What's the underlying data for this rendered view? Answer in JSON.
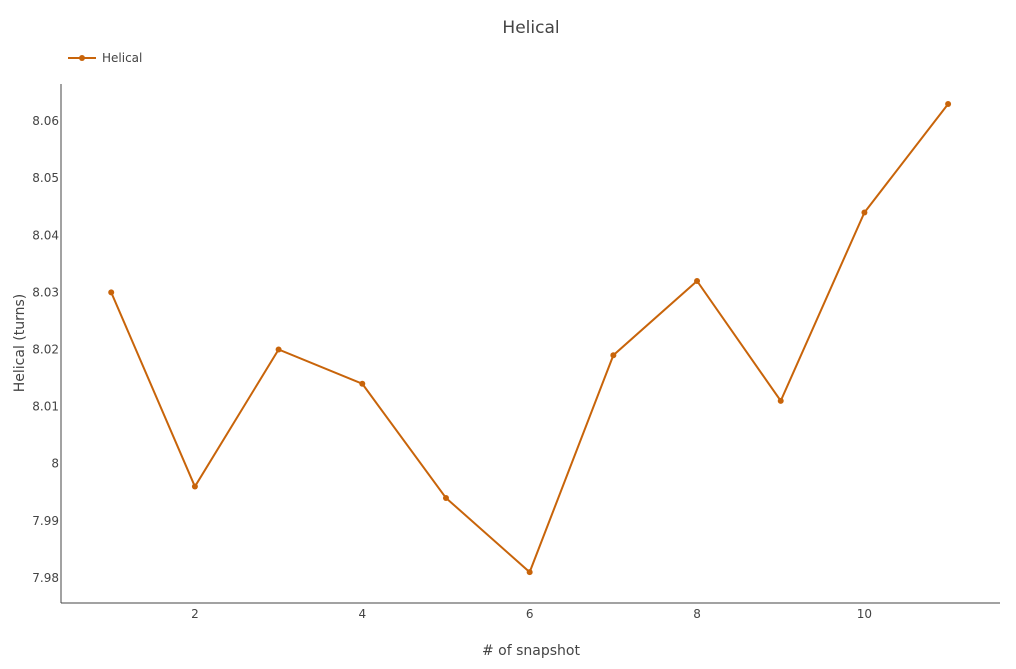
{
  "chart_data": {
    "type": "line",
    "title": "Helical",
    "xlabel": "# of snapshot",
    "ylabel": "Helical (turns)",
    "legend_position": "top-left",
    "grid": false,
    "xlim": [
      0.4,
      11.62
    ],
    "ylim": [
      7.9756,
      8.0665
    ],
    "xticks": [
      2,
      4,
      6,
      8,
      10
    ],
    "xtick_labels": [
      "2",
      "4",
      "6",
      "8",
      "10"
    ],
    "yticks": [
      7.98,
      7.99,
      8,
      8.01,
      8.02,
      8.03,
      8.04,
      8.05,
      8.06
    ],
    "ytick_labels": [
      "7.98",
      "7.99",
      "8",
      "8.01",
      "8.02",
      "8.03",
      "8.04",
      "8.05",
      "8.06"
    ],
    "series": [
      {
        "name": "Helical",
        "color": "#c8640a",
        "x": [
          1,
          2,
          3,
          4,
          5,
          6,
          7,
          8,
          9,
          10,
          11
        ],
        "y": [
          8.03,
          7.996,
          8.02,
          8.014,
          7.994,
          7.981,
          8.019,
          8.032,
          8.011,
          8.044,
          8.063
        ]
      }
    ]
  }
}
